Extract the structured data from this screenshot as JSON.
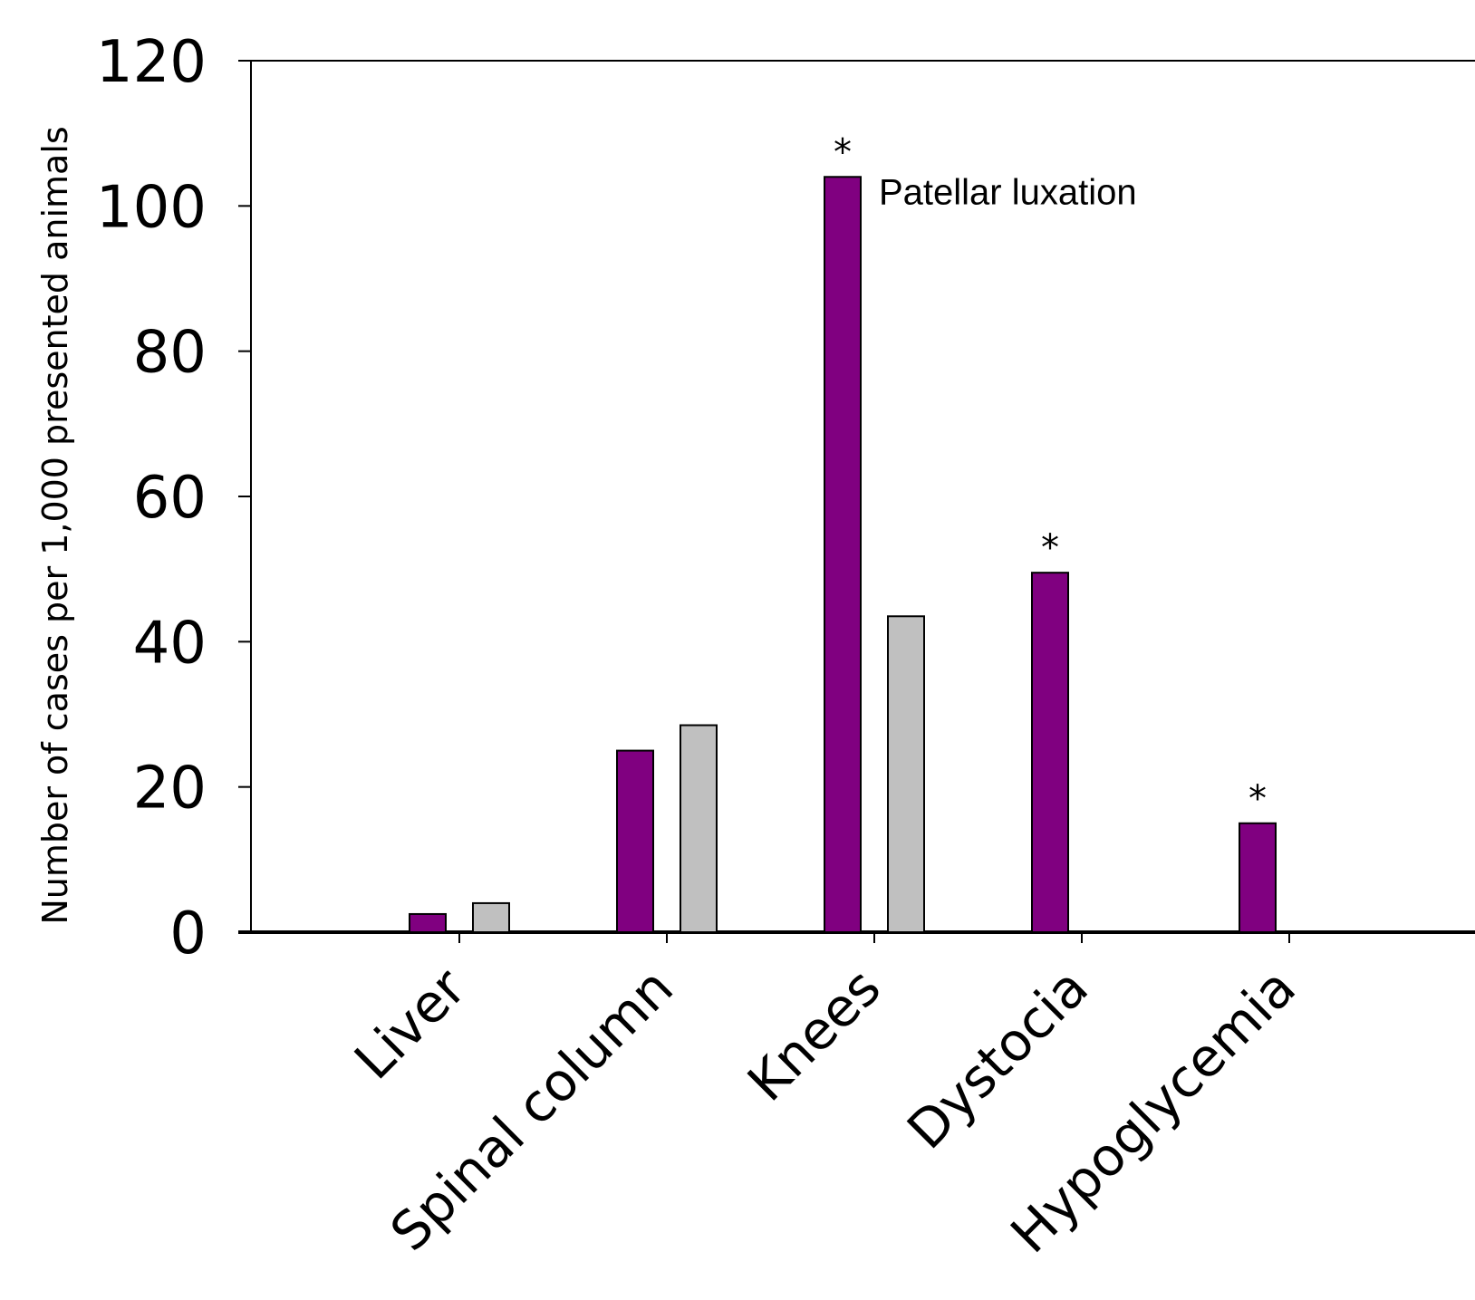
{
  "chart_data": {
    "type": "bar",
    "ylabel": "Number of cases per 1,000 presented animals",
    "xlabel": "",
    "ylim": [
      0,
      120
    ],
    "yticks": [
      0,
      20,
      40,
      60,
      80,
      100,
      120
    ],
    "categories": [
      "Liver",
      "Spinal column",
      "Knees",
      "Dystocia",
      "Hypoglycemia"
    ],
    "series": [
      {
        "values": [
          2.5,
          25,
          104,
          49.5,
          15
        ],
        "color": "#800080"
      },
      {
        "values": [
          4,
          28.5,
          43.5,
          0,
          0
        ],
        "color": "#c0c0c0"
      }
    ],
    "significance_markers": [
      "",
      "",
      "*",
      "*",
      "*"
    ],
    "annotation": {
      "text": "Patellar luxation",
      "category_index": 2,
      "series_index": 0
    },
    "grid": false,
    "legend": "none"
  }
}
